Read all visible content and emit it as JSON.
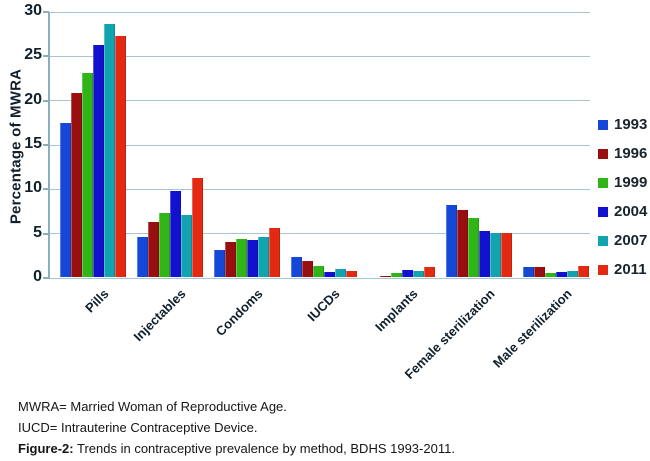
{
  "chart_data": {
    "type": "bar",
    "title": "",
    "xlabel": "",
    "ylabel": "Percentage of MWRA",
    "ylim": [
      0,
      30
    ],
    "ytick_step": 5,
    "grid": true,
    "legend_position": "right",
    "categories": [
      "Pills",
      "Injectables",
      "Condoms",
      "IUCDs",
      "Implants",
      "Female sterilization",
      "Male sterilization"
    ],
    "series": [
      {
        "name": "1993",
        "color": "#1548d8",
        "values": [
          17.4,
          4.5,
          3.0,
          2.2,
          0.0,
          8.1,
          1.1
        ]
      },
      {
        "name": "1996",
        "color": "#990f0f",
        "values": [
          20.8,
          6.2,
          3.9,
          1.8,
          0.1,
          7.6,
          1.1
        ]
      },
      {
        "name": "1999",
        "color": "#2fb515",
        "values": [
          23.0,
          7.2,
          4.3,
          1.2,
          0.5,
          6.7,
          0.5
        ]
      },
      {
        "name": "2004",
        "color": "#1111cf",
        "values": [
          26.2,
          9.7,
          4.2,
          0.6,
          0.8,
          5.2,
          0.6
        ]
      },
      {
        "name": "2007",
        "color": "#12a3b0",
        "values": [
          28.5,
          7.0,
          4.5,
          0.9,
          0.7,
          5.0,
          0.7
        ]
      },
      {
        "name": "2011",
        "color": "#e32911",
        "values": [
          27.2,
          11.2,
          5.5,
          0.7,
          1.1,
          5.0,
          1.2
        ]
      }
    ],
    "grid_color": "#a6c6cf",
    "axis_color": "#8bafba",
    "text_color": "#10202c"
  },
  "footer": {
    "line1": "MWRA= Married Woman of Reproductive Age.",
    "line2": "IUCD= Intrauterine Contraceptive Device.",
    "figure_label": "Figure-2:",
    "figure_caption": " Trends in contraceptive prevalence by method, BDHS 1993-2011."
  }
}
